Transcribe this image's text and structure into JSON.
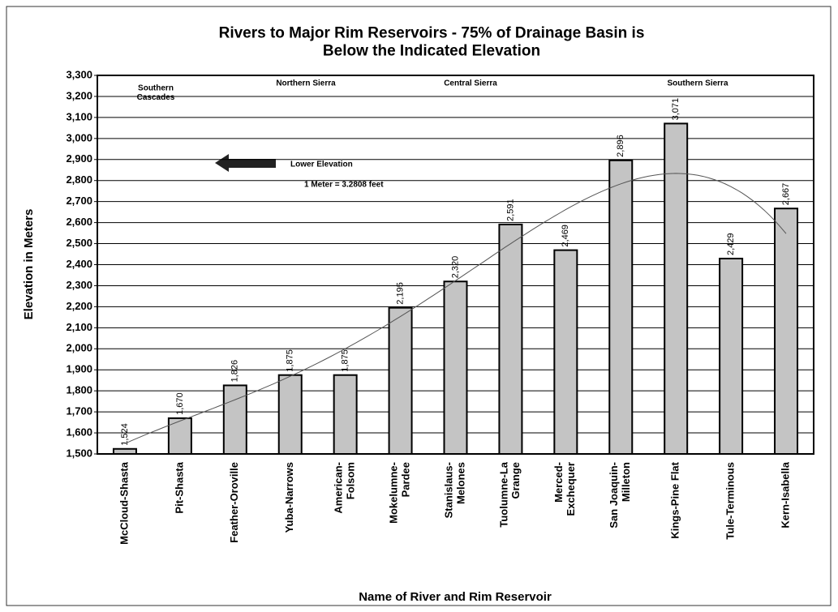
{
  "chart_data": {
    "type": "bar",
    "title": "Rivers to Major Rim Reservoirs - 75% of Drainage Basin is\nBelow the Indicated Elevation",
    "y_label": "Elevation in Meters",
    "x_label": "Name of River and Rim Reservoir",
    "categories": [
      "McCloud-Shasta",
      "Pit-Shasta",
      "Feather-Oroville",
      "Yuba-Narrows",
      "American-\nFolsom",
      "Mokelumne-\nPardee",
      "Stanislaus-\nMelones",
      "Tuolumne-La\nGrange",
      "Merced-\nExchequer",
      "San Joaquin-\nMilleton",
      "Kings-Pine Flat",
      "Tule-Terminous",
      "Kern-Isabella"
    ],
    "values": [
      1524,
      1670,
      1826,
      1875,
      1875,
      2195,
      2320,
      2591,
      2469,
      2896,
      3071,
      2429,
      2667
    ],
    "value_labels": [
      "1,524",
      "1,670",
      "1,826",
      "1,875",
      "1,875",
      "2,195",
      "2,320",
      "2,591",
      "2,469",
      "2,896",
      "3,071",
      "2,429",
      "2,667"
    ],
    "color": "#c4c4c4",
    "ylim": [
      1500,
      3300
    ],
    "yticks": [
      {
        "value": 1500,
        "label": "1,500"
      },
      {
        "value": 1600,
        "label": "1,600"
      },
      {
        "value": 1700,
        "label": "1,700"
      },
      {
        "value": 1800,
        "label": "1,800"
      },
      {
        "value": 1900,
        "label": "1,900"
      },
      {
        "value": 2000,
        "label": "2,000"
      },
      {
        "value": 2100,
        "label": "2,100"
      },
      {
        "value": 2200,
        "label": "2,200"
      },
      {
        "value": 2300,
        "label": "2,300"
      },
      {
        "value": 2400,
        "label": "2,400"
      },
      {
        "value": 2500,
        "label": "2,500"
      },
      {
        "value": 2600,
        "label": "2,600"
      },
      {
        "value": 2700,
        "label": "2,700"
      },
      {
        "value": 2800,
        "label": "2,800"
      },
      {
        "value": 2900,
        "label": "2,900"
      },
      {
        "value": 3000,
        "label": "3,000"
      },
      {
        "value": 3100,
        "label": "3,100"
      },
      {
        "value": 3200,
        "label": "3,200"
      },
      {
        "value": 3300,
        "label": "3,300"
      }
    ],
    "grid": true,
    "trendline": "polynomial",
    "annotations": [
      "Southern\nCascades",
      "Northern Sierra",
      "Central Sierra",
      "Southern Sierra",
      "Lower Elevation",
      "1 Meter = 3.2808 feet"
    ]
  }
}
